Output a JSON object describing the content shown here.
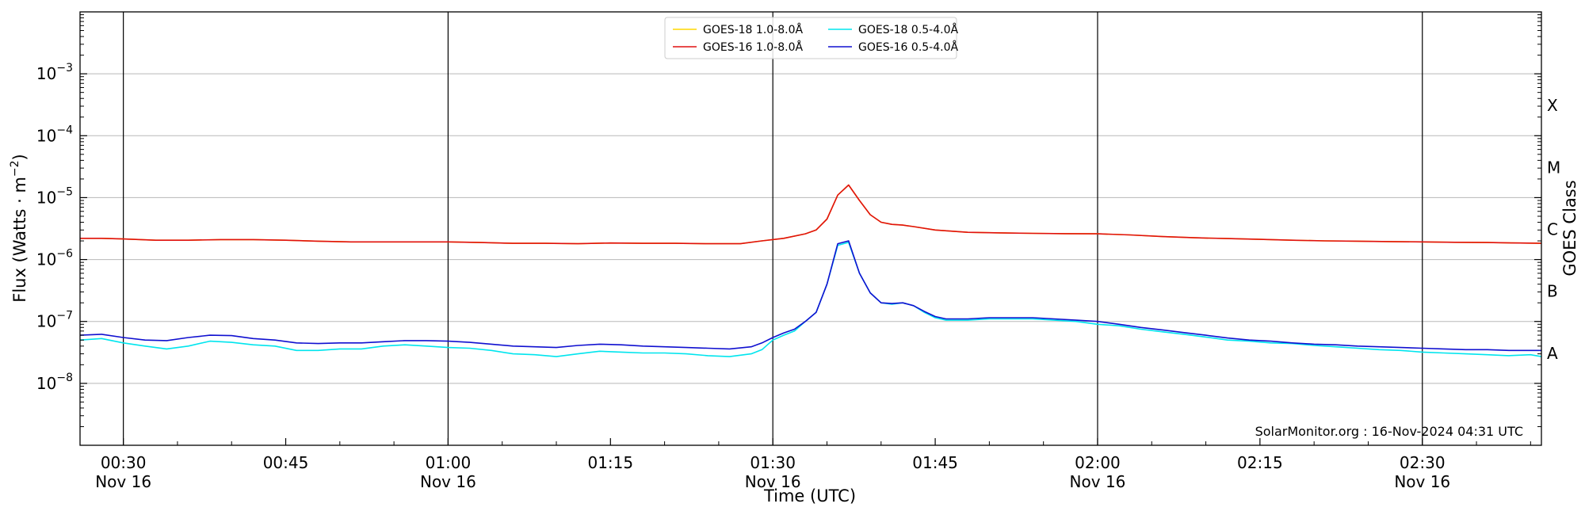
{
  "chart_data": {
    "type": "line",
    "title": "",
    "xlabel": "Time (UTC)",
    "ylabel": "Flux (Watts · m",
    "ylabel_sup": "−2",
    "ylabel_close": ")",
    "y2label": "GOES Class",
    "yscale": "log",
    "ylim": [
      1e-09,
      0.01
    ],
    "y_ticks": [
      {
        "value": 1e-08,
        "base": "10",
        "exp": "−8"
      },
      {
        "value": 1e-07,
        "base": "10",
        "exp": "−7"
      },
      {
        "value": 1e-06,
        "base": "10",
        "exp": "−6"
      },
      {
        "value": 1e-05,
        "base": "10",
        "exp": "−5"
      },
      {
        "value": 0.0001,
        "base": "10",
        "exp": "−4"
      },
      {
        "value": 0.001,
        "base": "10",
        "exp": "−3"
      }
    ],
    "goes_classes": [
      {
        "label": "A",
        "value": 1e-08
      },
      {
        "label": "B",
        "value": 1e-07
      },
      {
        "label": "C",
        "value": 1e-06
      },
      {
        "label": "M",
        "value": 1e-05
      },
      {
        "label": "X",
        "value": 0.0001
      }
    ],
    "xlim": [
      "00:26",
      "02:41"
    ],
    "x_ticks": [
      {
        "time": "00:30",
        "label": "00:30",
        "date": "Nov 16",
        "vline": true
      },
      {
        "time": "00:45",
        "label": "00:45",
        "date": "",
        "vline": false
      },
      {
        "time": "01:00",
        "label": "01:00",
        "date": "Nov 16",
        "vline": true
      },
      {
        "time": "01:15",
        "label": "01:15",
        "date": "",
        "vline": false
      },
      {
        "time": "01:30",
        "label": "01:30",
        "date": "Nov 16",
        "vline": true
      },
      {
        "time": "01:45",
        "label": "01:45",
        "date": "",
        "vline": false
      },
      {
        "time": "02:00",
        "label": "02:00",
        "date": "Nov 16",
        "vline": true
      },
      {
        "time": "02:15",
        "label": "02:15",
        "date": "",
        "vline": false
      },
      {
        "time": "02:30",
        "label": "02:30",
        "date": "Nov 16",
        "vline": true
      }
    ],
    "grid": true,
    "legend_position": "top-center",
    "credit": "SolarMonitor.org : 16-Nov-2024 04:31 UTC",
    "series": [
      {
        "name": "GOES-18 1.0-8.0Å",
        "color": "#ffd700",
        "x": [
          "00:26",
          "00:28",
          "00:30",
          "00:33",
          "00:36",
          "00:39",
          "00:42",
          "00:45",
          "00:48",
          "00:51",
          "00:54",
          "00:57",
          "01:00",
          "01:03",
          "01:06",
          "01:09",
          "01:12",
          "01:15",
          "01:18",
          "01:21",
          "01:24",
          "01:27",
          "01:29",
          "01:31",
          "01:33",
          "01:34",
          "01:35",
          "01:36",
          "01:37",
          "01:38",
          "01:39",
          "01:40",
          "01:41",
          "01:42",
          "01:43",
          "01:45",
          "01:48",
          "01:51",
          "01:54",
          "01:57",
          "02:00",
          "02:03",
          "02:06",
          "02:09",
          "02:12",
          "02:15",
          "02:18",
          "02:21",
          "02:24",
          "02:27",
          "02:30",
          "02:33",
          "02:36",
          "02:39",
          "02:41"
        ],
        "values": [
          2.2e-06,
          2.2e-06,
          2.15e-06,
          2.05e-06,
          2.05e-06,
          2.1e-06,
          2.1e-06,
          2.05e-06,
          1.98e-06,
          1.93e-06,
          1.93e-06,
          1.93e-06,
          1.93e-06,
          1.88e-06,
          1.83e-06,
          1.83e-06,
          1.8e-06,
          1.85e-06,
          1.83e-06,
          1.83e-06,
          1.8e-06,
          1.8e-06,
          2e-06,
          2.2e-06,
          2.6e-06,
          3e-06,
          4.5e-06,
          1.1e-05,
          1.6e-05,
          9e-06,
          5.3e-06,
          4e-06,
          3.7e-06,
          3.6e-06,
          3.4e-06,
          3e-06,
          2.75e-06,
          2.7e-06,
          2.65e-06,
          2.62e-06,
          2.6e-06,
          2.5e-06,
          2.35e-06,
          2.25e-06,
          2.18e-06,
          2.12e-06,
          2.05e-06,
          2e-06,
          1.98e-06,
          1.95e-06,
          1.93e-06,
          1.9e-06,
          1.88e-06,
          1.85e-06,
          1.83e-06
        ]
      },
      {
        "name": "GOES-16 1.0-8.0Å",
        "color": "#e01010",
        "x": [
          "00:26",
          "00:28",
          "00:30",
          "00:33",
          "00:36",
          "00:39",
          "00:42",
          "00:45",
          "00:48",
          "00:51",
          "00:54",
          "00:57",
          "01:00",
          "01:03",
          "01:06",
          "01:09",
          "01:12",
          "01:15",
          "01:18",
          "01:21",
          "01:24",
          "01:27",
          "01:29",
          "01:31",
          "01:33",
          "01:34",
          "01:35",
          "01:36",
          "01:37",
          "01:38",
          "01:39",
          "01:40",
          "01:41",
          "01:42",
          "01:43",
          "01:45",
          "01:48",
          "01:51",
          "01:54",
          "01:57",
          "02:00",
          "02:03",
          "02:06",
          "02:09",
          "02:12",
          "02:15",
          "02:18",
          "02:21",
          "02:24",
          "02:27",
          "02:30",
          "02:33",
          "02:36",
          "02:39",
          "02:41"
        ],
        "values": [
          2.2e-06,
          2.2e-06,
          2.15e-06,
          2.05e-06,
          2.05e-06,
          2.1e-06,
          2.1e-06,
          2.05e-06,
          1.98e-06,
          1.93e-06,
          1.93e-06,
          1.93e-06,
          1.93e-06,
          1.88e-06,
          1.83e-06,
          1.83e-06,
          1.8e-06,
          1.85e-06,
          1.83e-06,
          1.83e-06,
          1.8e-06,
          1.8e-06,
          2e-06,
          2.2e-06,
          2.6e-06,
          3e-06,
          4.5e-06,
          1.1e-05,
          1.6e-05,
          9e-06,
          5.3e-06,
          4e-06,
          3.7e-06,
          3.6e-06,
          3.4e-06,
          3e-06,
          2.75e-06,
          2.7e-06,
          2.65e-06,
          2.62e-06,
          2.6e-06,
          2.5e-06,
          2.35e-06,
          2.25e-06,
          2.18e-06,
          2.12e-06,
          2.05e-06,
          2e-06,
          1.98e-06,
          1.95e-06,
          1.93e-06,
          1.9e-06,
          1.88e-06,
          1.85e-06,
          1.83e-06
        ]
      },
      {
        "name": "GOES-18 0.5-4.0Å",
        "color": "#00e5ee",
        "x": [
          "00:26",
          "00:28",
          "00:30",
          "00:32",
          "00:34",
          "00:36",
          "00:38",
          "00:40",
          "00:42",
          "00:44",
          "00:46",
          "00:48",
          "00:50",
          "00:52",
          "00:54",
          "00:56",
          "00:58",
          "01:00",
          "01:02",
          "01:04",
          "01:06",
          "01:08",
          "01:10",
          "01:12",
          "01:14",
          "01:16",
          "01:18",
          "01:20",
          "01:22",
          "01:24",
          "01:26",
          "01:28",
          "01:29",
          "01:30",
          "01:31",
          "01:32",
          "01:33",
          "01:34",
          "01:35",
          "01:36",
          "01:37",
          "01:38",
          "01:39",
          "01:40",
          "01:41",
          "01:42",
          "01:43",
          "01:44",
          "01:45",
          "01:46",
          "01:48",
          "01:50",
          "01:52",
          "01:54",
          "01:56",
          "01:58",
          "02:00",
          "02:02",
          "02:04",
          "02:06",
          "02:08",
          "02:10",
          "02:12",
          "02:14",
          "02:16",
          "02:18",
          "02:20",
          "02:22",
          "02:24",
          "02:26",
          "02:28",
          "02:30",
          "02:32",
          "02:34",
          "02:36",
          "02:38",
          "02:40",
          "02:41"
        ],
        "values": [
          5e-08,
          5.3e-08,
          4.5e-08,
          4e-08,
          3.6e-08,
          4e-08,
          4.8e-08,
          4.6e-08,
          4.2e-08,
          4e-08,
          3.4e-08,
          3.4e-08,
          3.6e-08,
          3.6e-08,
          4e-08,
          4.2e-08,
          4e-08,
          3.8e-08,
          3.7e-08,
          3.4e-08,
          3e-08,
          2.9e-08,
          2.7e-08,
          3e-08,
          3.3e-08,
          3.2e-08,
          3.1e-08,
          3.1e-08,
          3e-08,
          2.8e-08,
          2.7e-08,
          3e-08,
          3.5e-08,
          5e-08,
          6e-08,
          7e-08,
          1e-07,
          1.4e-07,
          4e-07,
          1.7e-06,
          1.9e-06,
          6e-07,
          2.9e-07,
          2e-07,
          1.9e-07,
          2e-07,
          1.8e-07,
          1.4e-07,
          1.15e-07,
          1.05e-07,
          1.05e-07,
          1.1e-07,
          1.1e-07,
          1.1e-07,
          1.05e-07,
          1e-07,
          9e-08,
          8.5e-08,
          7.5e-08,
          6.8e-08,
          6.2e-08,
          5.6e-08,
          5e-08,
          4.8e-08,
          4.5e-08,
          4.4e-08,
          4.1e-08,
          3.9e-08,
          3.7e-08,
          3.5e-08,
          3.4e-08,
          3.2e-08,
          3.1e-08,
          3e-08,
          2.9e-08,
          2.8e-08,
          2.9e-08,
          2.7e-08
        ]
      },
      {
        "name": "GOES-16 0.5-4.0Å",
        "color": "#1010d0",
        "x": [
          "00:26",
          "00:28",
          "00:30",
          "00:32",
          "00:34",
          "00:36",
          "00:38",
          "00:40",
          "00:42",
          "00:44",
          "00:46",
          "00:48",
          "00:50",
          "00:52",
          "00:54",
          "00:56",
          "00:58",
          "01:00",
          "01:02",
          "01:04",
          "01:06",
          "01:08",
          "01:10",
          "01:12",
          "01:14",
          "01:16",
          "01:18",
          "01:20",
          "01:22",
          "01:24",
          "01:26",
          "01:28",
          "01:29",
          "01:30",
          "01:31",
          "01:32",
          "01:33",
          "01:34",
          "01:35",
          "01:36",
          "01:37",
          "01:38",
          "01:39",
          "01:40",
          "01:41",
          "01:42",
          "01:43",
          "01:44",
          "01:45",
          "01:46",
          "01:48",
          "01:50",
          "01:52",
          "01:54",
          "01:56",
          "01:58",
          "02:00",
          "02:02",
          "02:04",
          "02:06",
          "02:08",
          "02:10",
          "02:12",
          "02:14",
          "02:16",
          "02:18",
          "02:20",
          "02:22",
          "02:24",
          "02:26",
          "02:28",
          "02:30",
          "02:32",
          "02:34",
          "02:36",
          "02:38",
          "02:40",
          "02:41"
        ],
        "values": [
          6e-08,
          6.2e-08,
          5.5e-08,
          5e-08,
          4.9e-08,
          5.5e-08,
          6e-08,
          5.9e-08,
          5.3e-08,
          5e-08,
          4.5e-08,
          4.4e-08,
          4.5e-08,
          4.5e-08,
          4.7e-08,
          4.9e-08,
          4.9e-08,
          4.8e-08,
          4.6e-08,
          4.3e-08,
          4e-08,
          3.9e-08,
          3.8e-08,
          4.1e-08,
          4.3e-08,
          4.2e-08,
          4e-08,
          3.9e-08,
          3.8e-08,
          3.7e-08,
          3.6e-08,
          3.9e-08,
          4.5e-08,
          5.5e-08,
          6.5e-08,
          7.5e-08,
          1e-07,
          1.4e-07,
          4e-07,
          1.8e-06,
          2e-06,
          6e-07,
          2.9e-07,
          2e-07,
          1.95e-07,
          2e-07,
          1.8e-07,
          1.45e-07,
          1.2e-07,
          1.1e-07,
          1.1e-07,
          1.15e-07,
          1.15e-07,
          1.15e-07,
          1.1e-07,
          1.05e-07,
          1e-07,
          9e-08,
          8e-08,
          7.3e-08,
          6.6e-08,
          6e-08,
          5.4e-08,
          5e-08,
          4.8e-08,
          4.5e-08,
          4.3e-08,
          4.2e-08,
          4e-08,
          3.9e-08,
          3.8e-08,
          3.7e-08,
          3.6e-08,
          3.5e-08,
          3.5e-08,
          3.4e-08,
          3.4e-08,
          3.4e-08
        ]
      }
    ]
  }
}
